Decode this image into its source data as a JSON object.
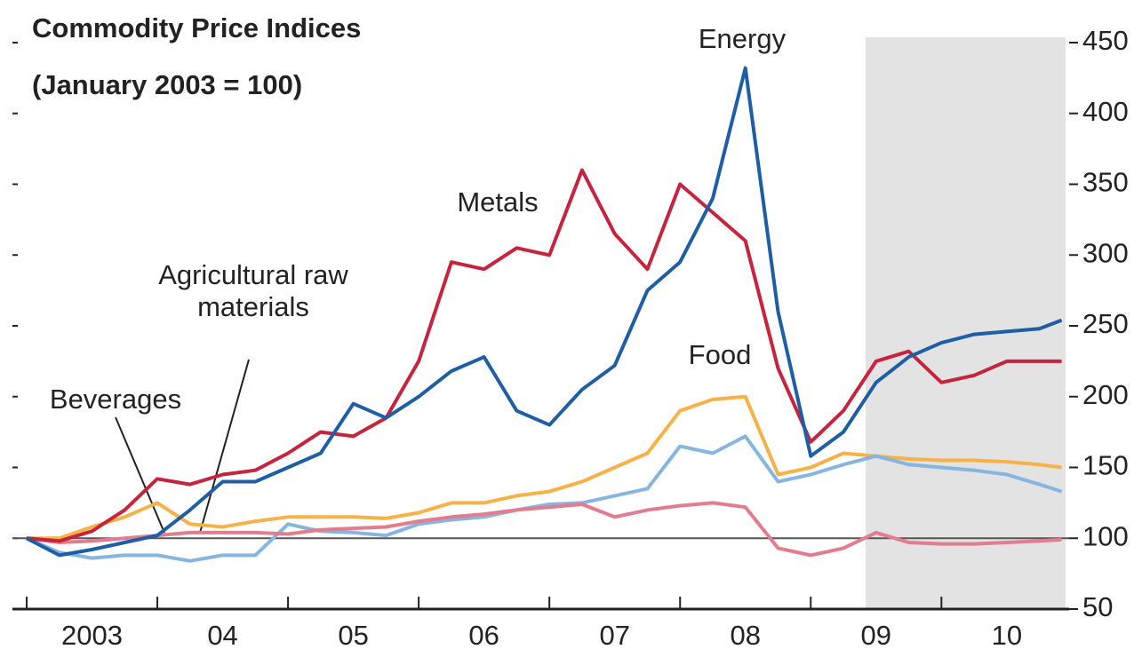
{
  "chart_data": {
    "type": "line",
    "title": "Commodity Price Indices",
    "subtitle": "(January 2003 = 100)",
    "x": [
      2003,
      2003.25,
      2003.5,
      2003.75,
      2004,
      2004.25,
      2004.5,
      2004.75,
      2005,
      2005.25,
      2005.5,
      2005.75,
      2006,
      2006.25,
      2006.5,
      2006.75,
      2007,
      2007.25,
      2007.5,
      2007.75,
      2008,
      2008.25,
      2008.5,
      2008.75,
      2009,
      2009.25,
      2009.5,
      2009.75,
      2010,
      2010.25,
      2010.5,
      2010.75,
      2010.92
    ],
    "series": [
      {
        "name": "Food",
        "color": "#f6b246",
        "values": [
          100,
          100,
          108,
          115,
          125,
          110,
          108,
          112,
          115,
          115,
          115,
          114,
          118,
          125,
          125,
          130,
          133,
          140,
          150,
          160,
          190,
          198,
          200,
          145,
          150,
          160,
          158,
          156,
          155,
          155,
          154,
          152,
          150
        ]
      },
      {
        "name": "Beverages",
        "color": "#86b6e0",
        "values": [
          100,
          90,
          86,
          88,
          88,
          84,
          88,
          88,
          110,
          105,
          104,
          102,
          110,
          113,
          115,
          120,
          124,
          125,
          130,
          135,
          165,
          160,
          172,
          140,
          145,
          152,
          158,
          152,
          150,
          148,
          145,
          138,
          133
        ]
      },
      {
        "name": "Agricultural raw materials",
        "color": "#e27c8e",
        "values": [
          100,
          97,
          98,
          100,
          102,
          104,
          104,
          104,
          103,
          106,
          107,
          108,
          112,
          115,
          117,
          120,
          122,
          124,
          115,
          120,
          123,
          125,
          122,
          93,
          88,
          93,
          104,
          97,
          96,
          96,
          97,
          98,
          99
        ]
      },
      {
        "name": "Metals",
        "color": "#c8233c",
        "values": [
          100,
          98,
          105,
          120,
          142,
          138,
          145,
          148,
          160,
          175,
          172,
          185,
          225,
          295,
          290,
          305,
          300,
          360,
          315,
          290,
          350,
          330,
          310,
          220,
          168,
          190,
          225,
          232,
          210,
          215,
          225,
          225,
          225
        ]
      },
      {
        "name": "Energy",
        "color": "#1e5ea6",
        "values": [
          100,
          88,
          92,
          97,
          102,
          120,
          140,
          140,
          150,
          160,
          195,
          185,
          200,
          218,
          228,
          190,
          180,
          205,
          222,
          275,
          295,
          340,
          432,
          260,
          158,
          175,
          210,
          228,
          238,
          244,
          246,
          248,
          254
        ]
      }
    ],
    "xlim": [
      2003,
      2010.95
    ],
    "xticks": [
      {
        "value": 2003,
        "label": "2003"
      },
      {
        "value": 2004,
        "label": "04"
      },
      {
        "value": 2005,
        "label": "05"
      },
      {
        "value": 2006,
        "label": "06"
      },
      {
        "value": 2007,
        "label": "07"
      },
      {
        "value": 2008,
        "label": "08"
      },
      {
        "value": 2009,
        "label": "09"
      },
      {
        "value": 2010,
        "label": "10"
      }
    ],
    "ylim": [
      50,
      450
    ],
    "yticks": [
      50,
      100,
      150,
      200,
      250,
      300,
      350,
      400,
      450
    ],
    "reference_line": 100,
    "shaded_range": [
      2009.42,
      2010.95
    ]
  }
}
